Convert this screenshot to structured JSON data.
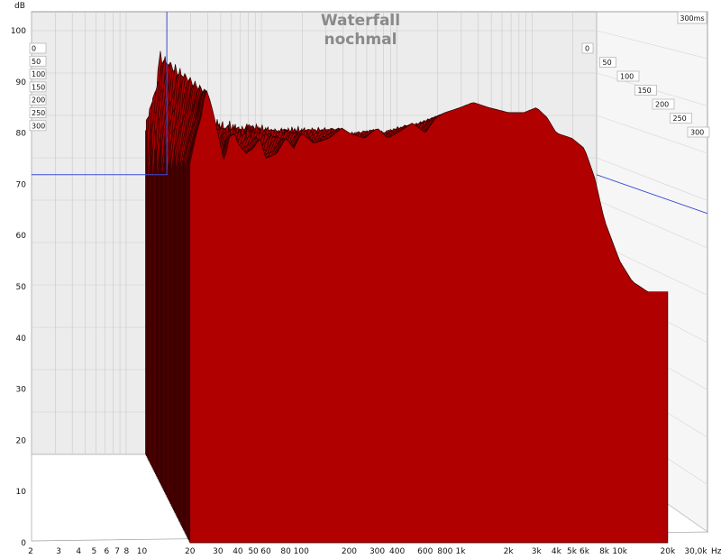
{
  "chart_data": {
    "type": "area",
    "title": "Waterfall",
    "subtitle": "nochmal",
    "ylabel": "dB",
    "xunit": "Hz",
    "time_unit_label": "300ms",
    "ylim": [
      0,
      105
    ],
    "y_ticks": [
      "0",
      "10",
      "20",
      "30",
      "40",
      "50",
      "60",
      "70",
      "80",
      "90",
      "100"
    ],
    "x_ticks": [
      "2",
      "3",
      "4",
      "5",
      "6",
      "7",
      "8",
      "10",
      "20",
      "30",
      "40",
      "50",
      "60",
      "80",
      "100",
      "200",
      "300",
      "400",
      "600",
      "800",
      "1k",
      "2k",
      "3k",
      "4k",
      "5k",
      "6k",
      "8k",
      "10k",
      "20k",
      "30,0k"
    ],
    "x_tick_values": [
      2,
      3,
      4,
      5,
      6,
      7,
      8,
      10,
      20,
      30,
      40,
      50,
      60,
      80,
      100,
      200,
      300,
      400,
      600,
      800,
      1000,
      2000,
      3000,
      4000,
      5000,
      6000,
      8000,
      10000,
      20000,
      30000
    ],
    "time_slices_ms": [
      "0",
      "50",
      "100",
      "150",
      "200",
      "250",
      "300"
    ],
    "freq_range_hz": [
      20,
      20000
    ],
    "cursor": {
      "freq_hz": 20,
      "level_db": 66
    },
    "front_slice": {
      "freq_hz": [
        20,
        22,
        24,
        25,
        27,
        30,
        33,
        35,
        38,
        40,
        45,
        50,
        55,
        60,
        70,
        80,
        90,
        100,
        120,
        150,
        180,
        200,
        250,
        300,
        350,
        400,
        500,
        600,
        700,
        800,
        1000,
        1200,
        1500,
        2000,
        2500,
        3000,
        3500,
        4000,
        5000,
        6000,
        7000,
        8000,
        10000,
        12000,
        15000,
        20000
      ],
      "level_db": [
        74,
        80,
        84,
        89,
        86,
        80,
        74,
        79,
        80,
        78,
        76,
        77,
        79,
        75,
        76,
        79,
        77,
        80,
        78,
        79,
        81,
        80,
        79,
        81,
        79,
        80,
        82,
        80,
        83,
        84,
        85,
        86,
        85,
        84,
        84,
        85,
        83,
        80,
        79,
        77,
        71,
        63,
        55,
        51,
        49,
        49
      ]
    }
  }
}
